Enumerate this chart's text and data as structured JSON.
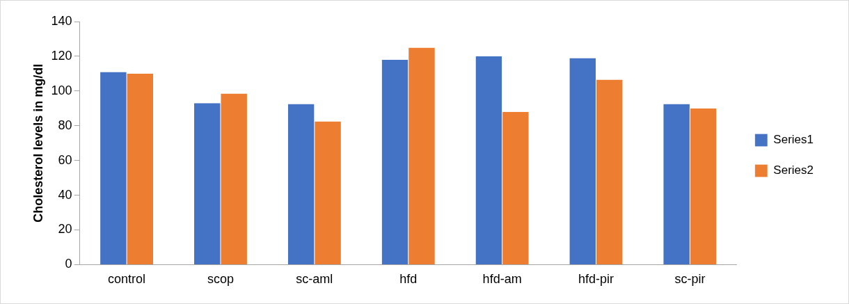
{
  "chart_data": {
    "type": "bar",
    "ylabel": "Cholesterol levels in mg/dl",
    "categories": [
      "control",
      "scop",
      "sc-aml",
      "hfd",
      "hfd-am",
      "hfd-pir",
      "sc-pir"
    ],
    "series": [
      {
        "name": "Series1",
        "color": "#4472c4",
        "values": [
          111,
          93,
          92.5,
          118,
          120,
          119,
          92.5
        ]
      },
      {
        "name": "Series2",
        "color": "#ed7d31",
        "values": [
          110,
          98.5,
          82.5,
          125,
          88,
          106.5,
          90
        ]
      }
    ],
    "ylim": [
      0,
      140
    ],
    "yticks": [
      0,
      20,
      40,
      60,
      80,
      100,
      120,
      140
    ],
    "grid": false,
    "legend": "right"
  }
}
